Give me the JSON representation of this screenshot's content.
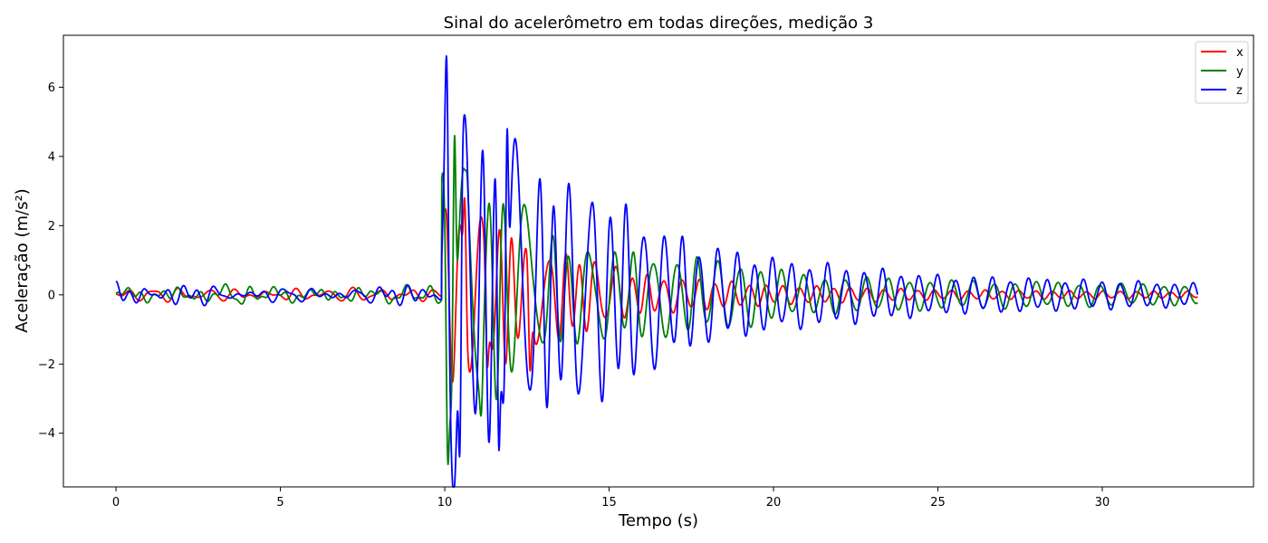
{
  "chart_data": {
    "type": "line",
    "title": "Sinal do acelerômetro em todas direções, medição 3",
    "xlabel": "Tempo (s)",
    "ylabel": "Aceleração (m/s²)",
    "xlim": [
      -1.6,
      34.6
    ],
    "ylim": [
      -5.55,
      7.5
    ],
    "xticks": [
      0,
      5,
      10,
      15,
      20,
      25,
      30
    ],
    "xtick_labels": [
      "0",
      "5",
      "10",
      "15",
      "20",
      "25",
      "30"
    ],
    "yticks": [
      -4,
      -2,
      0,
      2,
      4,
      6
    ],
    "ytick_labels": [
      "−4",
      "−2",
      "0",
      "2",
      "4",
      "6"
    ],
    "grid": false,
    "legend_position": "top-right",
    "duration": 32.9,
    "impact_time": 9.9,
    "series": [
      {
        "name": "x",
        "color": "#ff0000",
        "pre_noise": 0.15,
        "envelope": [
          [
            9.9,
            2.5
          ],
          [
            10.5,
            2.8
          ],
          [
            11.5,
            2.2
          ],
          [
            12.7,
            1.5
          ],
          [
            14.0,
            1.2
          ],
          [
            16.0,
            0.6
          ],
          [
            20.0,
            0.3
          ],
          [
            25.0,
            0.15
          ],
          [
            32.9,
            0.1
          ]
        ],
        "frequency": 1.95,
        "phase": 0.0,
        "peaks": [
          {
            "t": 9.95,
            "v": 2.5
          },
          {
            "t": 10.6,
            "v": 2.8
          },
          {
            "t": 11.3,
            "v": -2.1
          },
          {
            "t": 12.6,
            "v": -2.2
          }
        ]
      },
      {
        "name": "y",
        "color": "#008000",
        "pre_noise": 0.2,
        "envelope": [
          [
            9.9,
            3.5
          ],
          [
            10.2,
            4.8
          ],
          [
            10.7,
            3.6
          ],
          [
            11.5,
            3.0
          ],
          [
            12.0,
            3.2
          ],
          [
            13.0,
            1.8
          ],
          [
            14.0,
            1.5
          ],
          [
            16.0,
            1.3
          ],
          [
            19.0,
            1.0
          ],
          [
            21.0,
            0.6
          ],
          [
            25.0,
            0.45
          ],
          [
            32.9,
            0.3
          ]
        ],
        "frequency": 1.55,
        "phase": 1.2,
        "peaks": [
          {
            "t": 10.1,
            "v": -4.9
          },
          {
            "t": 10.3,
            "v": 4.6
          },
          {
            "t": 10.65,
            "v": 3.6
          },
          {
            "t": 11.1,
            "v": -3.5
          }
        ]
      },
      {
        "name": "z",
        "color": "#0000ff",
        "pre_noise": 0.22,
        "envelope": [
          [
            9.9,
            2.0
          ],
          [
            10.1,
            6.9
          ],
          [
            10.6,
            5.2
          ],
          [
            11.3,
            4.3
          ],
          [
            12.0,
            4.7
          ],
          [
            13.0,
            3.4
          ],
          [
            14.5,
            3.3
          ],
          [
            16.0,
            2.4
          ],
          [
            17.5,
            1.6
          ],
          [
            20.0,
            1.1
          ],
          [
            25.0,
            0.6
          ],
          [
            32.9,
            0.35
          ]
        ],
        "frequency": 1.8,
        "phase": 0.6,
        "peaks": [
          {
            "t": 10.05,
            "v": 6.9
          },
          {
            "t": 10.45,
            "v": -4.7
          },
          {
            "t": 10.6,
            "v": 5.2
          },
          {
            "t": 11.9,
            "v": 4.8
          },
          {
            "t": 11.65,
            "v": -4.5
          }
        ]
      }
    ]
  }
}
